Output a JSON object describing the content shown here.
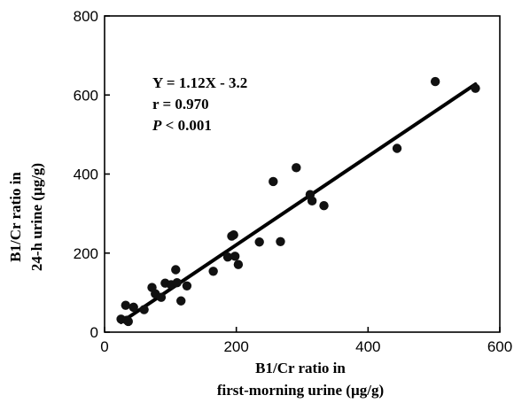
{
  "chart_data": {
    "type": "scatter",
    "xlabel_lines": [
      "B1/Cr ratio in",
      "first-morning urine (µg/g)"
    ],
    "ylabel_lines": [
      "B1/Cr ratio in",
      "24-h urine (µg/g)"
    ],
    "xlim": [
      0,
      600
    ],
    "ylim": [
      0,
      800
    ],
    "x_ticks": [
      0,
      200,
      400,
      600
    ],
    "y_ticks": [
      0,
      200,
      400,
      600,
      800
    ],
    "x_tick_labels": [
      "0",
      "200",
      "400",
      "600"
    ],
    "y_tick_labels": [
      "0",
      "200",
      "400",
      "600",
      "800"
    ],
    "grid": false,
    "annotation": {
      "equation": "Y = 1.12X - 3.2",
      "r": "r = 0.970",
      "p_symbol": "P",
      "p_rest": " < 0.001"
    },
    "regression": {
      "slope": 1.12,
      "intercept": -3.2,
      "x_range": [
        25,
        563
      ]
    },
    "points": [
      {
        "x": 25,
        "y": 33
      },
      {
        "x": 32,
        "y": 68
      },
      {
        "x": 34,
        "y": 30
      },
      {
        "x": 36,
        "y": 27
      },
      {
        "x": 44,
        "y": 63
      },
      {
        "x": 60,
        "y": 57
      },
      {
        "x": 72,
        "y": 113
      },
      {
        "x": 77,
        "y": 97
      },
      {
        "x": 86,
        "y": 88
      },
      {
        "x": 92,
        "y": 124
      },
      {
        "x": 101,
        "y": 120
      },
      {
        "x": 108,
        "y": 158
      },
      {
        "x": 110,
        "y": 125
      },
      {
        "x": 116,
        "y": 79
      },
      {
        "x": 125,
        "y": 117
      },
      {
        "x": 165,
        "y": 154
      },
      {
        "x": 187,
        "y": 190
      },
      {
        "x": 193,
        "y": 243
      },
      {
        "x": 196,
        "y": 246
      },
      {
        "x": 198,
        "y": 192
      },
      {
        "x": 203,
        "y": 171
      },
      {
        "x": 235,
        "y": 228
      },
      {
        "x": 256,
        "y": 381
      },
      {
        "x": 267,
        "y": 229
      },
      {
        "x": 291,
        "y": 416
      },
      {
        "x": 312,
        "y": 348
      },
      {
        "x": 315,
        "y": 332
      },
      {
        "x": 333,
        "y": 320
      },
      {
        "x": 444,
        "y": 465
      },
      {
        "x": 502,
        "y": 634
      },
      {
        "x": 563,
        "y": 617
      }
    ]
  }
}
